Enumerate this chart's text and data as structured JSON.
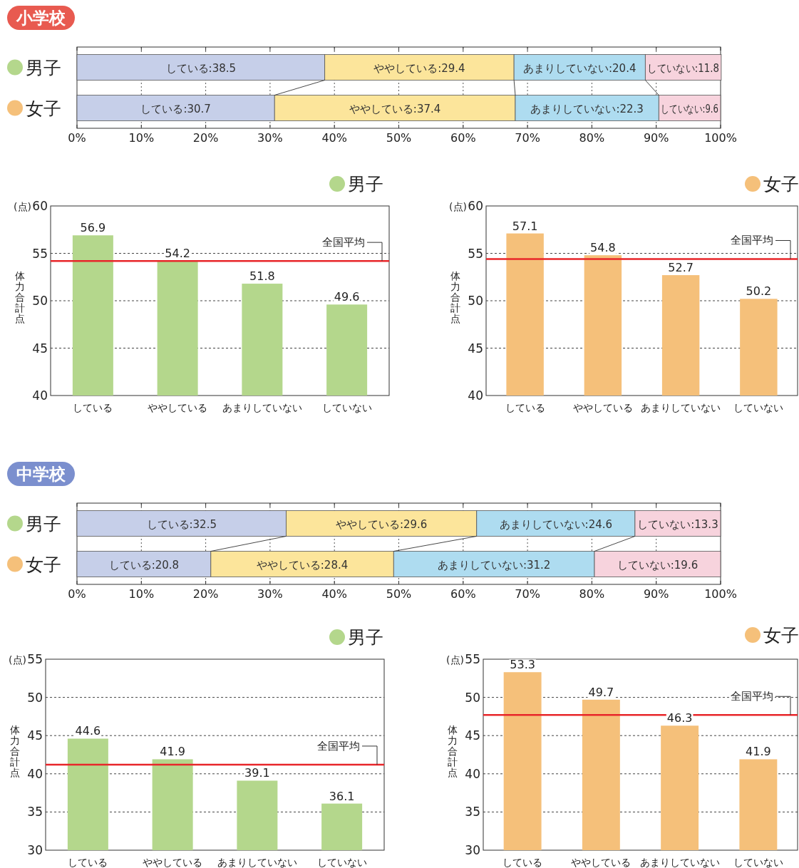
{
  "chart_data": [
    {
      "type": "bar",
      "title": "小学校",
      "orientation": "horizontal",
      "stacked": true,
      "categories": [
        "男子",
        "女子"
      ],
      "series": [
        {
          "color": "#c6cfe9",
          "values": [
            38.5,
            30.7
          ],
          "value_labels": [
            "している:38.5",
            "している:30.7"
          ]
        },
        {
          "color": "#fce59b",
          "values": [
            29.4,
            37.4
          ],
          "value_labels": [
            "ややしている:29.4",
            "ややしている:37.4"
          ]
        },
        {
          "color": "#aedcf0",
          "values": [
            20.4,
            22.3
          ],
          "value_labels": [
            "あまりしていない:20.4",
            "あまりしていない:22.3"
          ]
        },
        {
          "color": "#f7d3dd",
          "values": [
            11.8,
            9.6
          ],
          "value_labels": [
            "していない:11.8",
            "していない:9.6"
          ]
        }
      ],
      "xlim": [
        0,
        100
      ],
      "xticks": [
        {
          "value": 0,
          "label": "0%"
        },
        {
          "value": 10,
          "label": "10%"
        },
        {
          "value": 20,
          "label": "20%"
        },
        {
          "value": 30,
          "label": "30%"
        },
        {
          "value": 40,
          "label": "40%"
        },
        {
          "value": 50,
          "label": "50%"
        },
        {
          "value": 60,
          "label": "60%"
        },
        {
          "value": 70,
          "label": "70%"
        },
        {
          "value": 80,
          "label": "80%"
        },
        {
          "value": 90,
          "label": "90%"
        },
        {
          "value": 100,
          "label": "100%"
        }
      ],
      "grid": "x"
    },
    {
      "type": "bar",
      "categories": [
        "している",
        "ややしている",
        "あまりしていない",
        "していない"
      ],
      "series": [
        {
          "name": "男子",
          "color": "#b4d78c",
          "values": [
            56.9,
            54.2,
            51.8,
            49.6
          ]
        }
      ],
      "ylim": [
        40,
        60
      ],
      "yticks": [
        40,
        45,
        50,
        55,
        60
      ],
      "ylabel": "体力合計点",
      "annotations": [
        "(点)"
      ],
      "ref_lines": [
        {
          "axis": "y",
          "value": 54.2,
          "label": "全国平均",
          "color": "#e8262a"
        }
      ],
      "data_labels": true,
      "grid": "y",
      "legend": "top right"
    },
    {
      "type": "bar",
      "categories": [
        "している",
        "ややしている",
        "あまりしていない",
        "していない"
      ],
      "series": [
        {
          "name": "女子",
          "color": "#f5c07a",
          "values": [
            57.1,
            54.8,
            52.7,
            50.2
          ]
        }
      ],
      "ylim": [
        40,
        60
      ],
      "yticks": [
        40,
        45,
        50,
        55,
        60
      ],
      "ylabel": "体力合計点",
      "annotations": [
        "(点)"
      ],
      "ref_lines": [
        {
          "axis": "y",
          "value": 54.4,
          "label": "全国平均",
          "color": "#e8262a"
        }
      ],
      "data_labels": true,
      "grid": "y",
      "legend": "top right"
    },
    {
      "type": "bar",
      "title": "中学校",
      "orientation": "horizontal",
      "stacked": true,
      "categories": [
        "男子",
        "女子"
      ],
      "series": [
        {
          "color": "#c6cfe9",
          "values": [
            32.5,
            20.8
          ],
          "value_labels": [
            "している:32.5",
            "している:20.8"
          ]
        },
        {
          "color": "#fce59b",
          "values": [
            29.6,
            28.4
          ],
          "value_labels": [
            "ややしている:29.6",
            "ややしている:28.4"
          ]
        },
        {
          "color": "#aedcf0",
          "values": [
            24.6,
            31.2
          ],
          "value_labels": [
            "あまりしていない:24.6",
            "あまりしていない:31.2"
          ]
        },
        {
          "color": "#f7d3dd",
          "values": [
            13.3,
            19.6
          ],
          "value_labels": [
            "していない:13.3",
            "していない:19.6"
          ]
        }
      ],
      "xlim": [
        0,
        100
      ],
      "xticks": [
        {
          "value": 0,
          "label": "0%"
        },
        {
          "value": 10,
          "label": "10%"
        },
        {
          "value": 20,
          "label": "20%"
        },
        {
          "value": 30,
          "label": "30%"
        },
        {
          "value": 40,
          "label": "40%"
        },
        {
          "value": 50,
          "label": "50%"
        },
        {
          "value": 60,
          "label": "60%"
        },
        {
          "value": 70,
          "label": "70%"
        },
        {
          "value": 80,
          "label": "80%"
        },
        {
          "value": 90,
          "label": "90%"
        },
        {
          "value": 100,
          "label": "100%"
        }
      ],
      "grid": "x"
    },
    {
      "type": "bar",
      "categories": [
        "している",
        "ややしている",
        "あまりしていない",
        "していない"
      ],
      "series": [
        {
          "name": "男子",
          "color": "#b4d78c",
          "values": [
            44.6,
            41.9,
            39.1,
            36.1
          ]
        }
      ],
      "ylim": [
        30,
        55
      ],
      "yticks": [
        30,
        35,
        40,
        45,
        50,
        55
      ],
      "ylabel": "体力合計点",
      "annotations": [
        "(点)"
      ],
      "ref_lines": [
        {
          "axis": "y",
          "value": 41.2,
          "label": "全国平均",
          "color": "#e8262a"
        }
      ],
      "data_labels": true,
      "grid": "y",
      "legend": "top right"
    },
    {
      "type": "bar",
      "categories": [
        "している",
        "ややしている",
        "あまりしていない",
        "していない"
      ],
      "series": [
        {
          "name": "女子",
          "color": "#f5c07a",
          "values": [
            53.3,
            49.7,
            46.3,
            41.9
          ]
        }
      ],
      "ylim": [
        30,
        55
      ],
      "yticks": [
        30,
        35,
        40,
        45,
        50,
        55
      ],
      "ylabel": "体力合計点",
      "annotations": [
        "(点)"
      ],
      "ref_lines": [
        {
          "axis": "y",
          "value": 47.7,
          "label": "全国平均",
          "color": "#e8262a"
        }
      ],
      "data_labels": true,
      "grid": "y",
      "legend": "top right"
    }
  ]
}
